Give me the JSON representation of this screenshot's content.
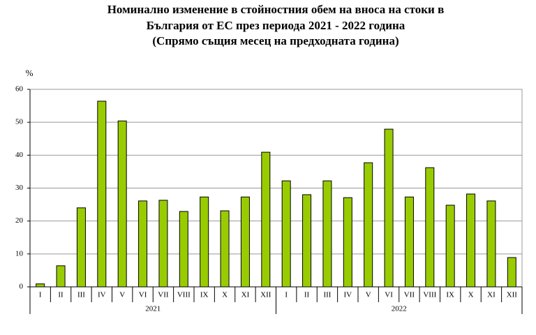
{
  "chart_data": {
    "type": "bar",
    "title": [
      "Номинално изменение в стойностния обем  на вноса на стоки в",
      "България от ЕС през периода 2021 - 2022 година",
      "(Спрямо същия месец на предходната година)"
    ],
    "y_label": "%",
    "categories": [
      "I",
      "II",
      "III",
      "IV",
      "V",
      "VI",
      "VII",
      "VIII",
      "IX",
      "X",
      "XI",
      "XII",
      "I",
      "II",
      "III",
      "IV",
      "V",
      "VI",
      "VII",
      "VIII",
      "IX",
      "X",
      "XI",
      "XII"
    ],
    "category_groups": [
      "2021",
      "2022"
    ],
    "values": [
      0.9,
      6.4,
      24.0,
      56.4,
      50.4,
      26.1,
      26.3,
      22.9,
      27.3,
      23.1,
      27.3,
      40.9,
      32.2,
      28.0,
      32.2,
      27.1,
      37.7,
      47.9,
      27.3,
      36.2,
      24.8,
      28.2,
      26.1,
      8.9
    ],
    "color": "#99cc00",
    "ylim": [
      0,
      60
    ],
    "yticks": [
      0,
      10,
      20,
      30,
      40,
      50,
      60
    ],
    "grid": true
  }
}
